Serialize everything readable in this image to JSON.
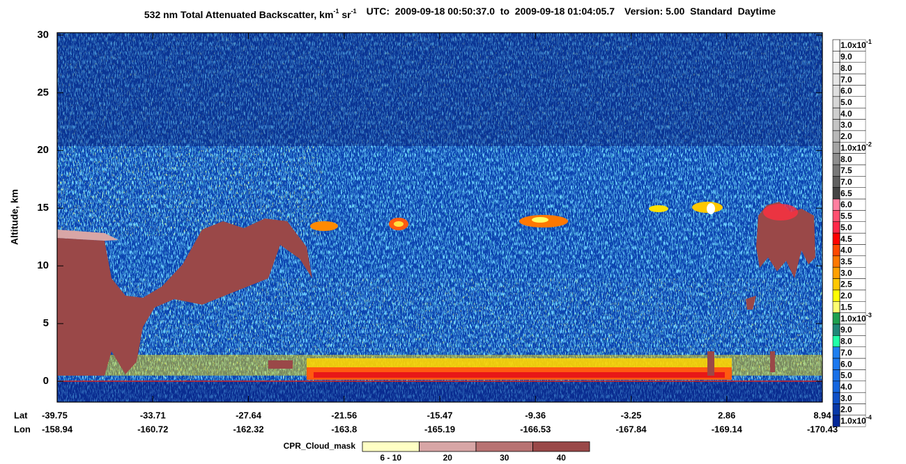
{
  "chart_data": {
    "type": "curtain",
    "title": [
      "532 nm Total Attenuated Backscatter, km",
      "-1",
      " sr",
      "-1"
    ],
    "time_range": "UTC:  2009-09-18 00:50:37.0  to  2009-09-18 01:04:05.7",
    "version": "Version: 5.00  Standard  Daytime",
    "y_label": "Altitude, km",
    "ylim": [
      -1.8,
      30.2
    ],
    "yticks": [
      0,
      5,
      10,
      15,
      20,
      25,
      30
    ],
    "lat_label": "Lat",
    "lon_label": "Lon",
    "lat": [
      -39.75,
      -33.71,
      -27.64,
      -21.56,
      -15.47,
      -9.36,
      -3.25,
      2.86,
      8.94
    ],
    "lon": [
      -158.94,
      -160.72,
      -162.32,
      -163.8,
      -165.19,
      -166.53,
      -167.84,
      -169.14,
      -170.43
    ],
    "colorbar": [
      {
        "label": "1.0x10",
        "exponent": "-1",
        "color": "#ffffff"
      },
      {
        "label": "9.0",
        "color": "#f6f6f6"
      },
      {
        "label": "8.0",
        "color": "#eeeeee"
      },
      {
        "label": "7.0",
        "color": "#e6e6e6"
      },
      {
        "label": "6.0",
        "color": "#dedede"
      },
      {
        "label": "5.0",
        "color": "#d6d6d6"
      },
      {
        "label": "4.0",
        "color": "#cecece"
      },
      {
        "label": "3.0",
        "color": "#c4c4c4"
      },
      {
        "label": "2.0",
        "color": "#b8b8b8"
      },
      {
        "label": "1.0x10",
        "exponent": "-2",
        "color": "#a4a4a4"
      },
      {
        "label": "8.0",
        "color": "#8e8e8e"
      },
      {
        "label": "7.5",
        "color": "#787878"
      },
      {
        "label": "7.0",
        "color": "#606060"
      },
      {
        "label": "6.5",
        "color": "#444444"
      },
      {
        "label": "6.0",
        "color": "#ff7fa0"
      },
      {
        "label": "5.5",
        "color": "#ff5070"
      },
      {
        "label": "5.0",
        "color": "#ff2848"
      },
      {
        "label": "4.5",
        "color": "#ff0000"
      },
      {
        "label": "4.0",
        "color": "#ff4800"
      },
      {
        "label": "3.5",
        "color": "#ff7800"
      },
      {
        "label": "3.0",
        "color": "#ffa000"
      },
      {
        "label": "2.5",
        "color": "#ffc800"
      },
      {
        "label": "2.0",
        "color": "#ffff00"
      },
      {
        "label": "1.5",
        "color": "#ffff70"
      },
      {
        "label": "1.0x10",
        "exponent": "-3",
        "color": "#20a050"
      },
      {
        "label": "9.0",
        "color": "#208878"
      },
      {
        "label": "8.0",
        "color": "#20ffa8"
      },
      {
        "label": "7.0",
        "color": "#1e7ff0"
      },
      {
        "label": "6.0",
        "color": "#1a78f0"
      },
      {
        "label": "5.0",
        "color": "#1870e8"
      },
      {
        "label": "4.0",
        "color": "#1466e0"
      },
      {
        "label": "3.0",
        "color": "#0e50c8"
      },
      {
        "label": "2.0",
        "color": "#0838a8"
      },
      {
        "label": "1.0x10",
        "exponent": "-4",
        "color": "#042898"
      }
    ],
    "cloud_mask": {
      "title": "CPR_Cloud_mask",
      "classes": [
        {
          "label": "6 - 10",
          "color": "#ffffc4"
        },
        {
          "label": "20",
          "color": "#d8a6a6"
        },
        {
          "label": "30",
          "color": "#b87272"
        },
        {
          "label": "40",
          "color": "#9a4848"
        }
      ]
    }
  }
}
